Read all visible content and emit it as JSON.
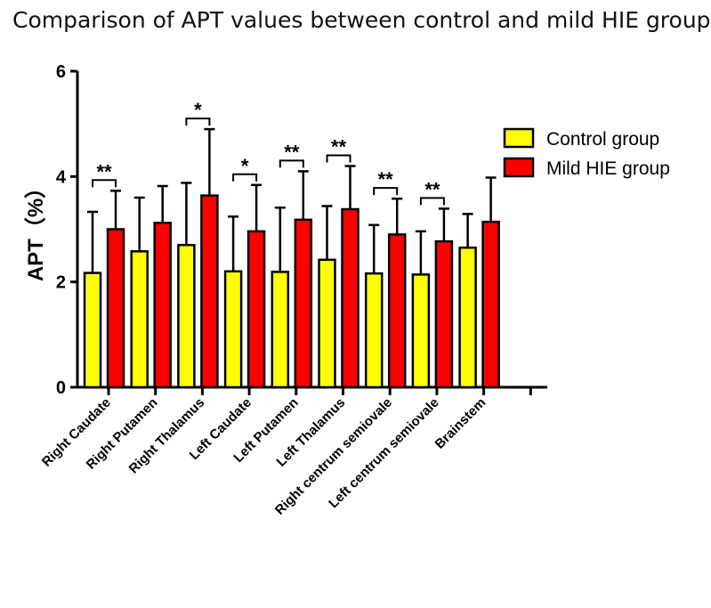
{
  "chart_data": {
    "type": "bar",
    "title": "Comparison of APT values between control and mild HIE group",
    "ylabel": "APT（%）",
    "ylim": [
      0,
      6
    ],
    "yticks": [
      "0",
      "2",
      "4",
      "6"
    ],
    "categories": [
      "Right Caudate",
      "Right Putamen",
      "Right Thalamus",
      "Left Caudate",
      "Left Putamen",
      "Left Thalamus",
      "Right centrum semiovale",
      "Left centrum semiovale",
      "Brainstem"
    ],
    "series": [
      {
        "name": "Control group",
        "color": "#ffff00",
        "values": [
          2.17,
          2.58,
          2.7,
          2.2,
          2.19,
          2.42,
          2.16,
          2.14,
          2.65
        ],
        "errors": [
          1.16,
          1.02,
          1.18,
          1.04,
          1.22,
          1.02,
          0.92,
          0.82,
          0.64
        ]
      },
      {
        "name": "Mild HIE group",
        "color": "#ff0000",
        "values": [
          3.0,
          3.12,
          3.64,
          2.96,
          3.18,
          3.38,
          2.9,
          2.77,
          3.14
        ],
        "errors": [
          0.73,
          0.7,
          1.26,
          0.88,
          0.92,
          0.82,
          0.68,
          0.62,
          0.84
        ]
      }
    ],
    "significance": [
      "**",
      "",
      "*",
      "*",
      "**",
      "**",
      "**",
      "**",
      ""
    ],
    "legend_position": "top-right",
    "grid": false
  }
}
